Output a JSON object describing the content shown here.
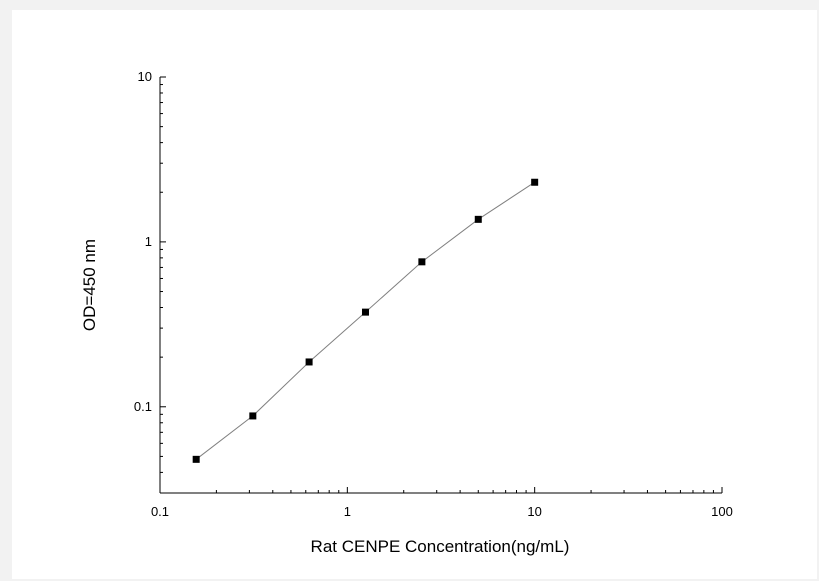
{
  "chart_data": {
    "type": "scatter",
    "title": "",
    "xlabel": "Rat CENPE Concentration(ng/mL)",
    "ylabel": "OD=450 nm",
    "x_scale": "log",
    "y_scale": "log",
    "xlim": [
      0.1,
      100
    ],
    "ylim": [
      0.03,
      10
    ],
    "x_ticks": [
      {
        "value": 0.1,
        "label": "0.1"
      },
      {
        "value": 1,
        "label": "1"
      },
      {
        "value": 10,
        "label": "10"
      },
      {
        "value": 100,
        "label": "100"
      }
    ],
    "y_ticks": [
      {
        "value": 0.1,
        "label": "0.1"
      },
      {
        "value": 1,
        "label": "1"
      },
      {
        "value": 10,
        "label": "10"
      }
    ],
    "grid": false,
    "legend": "none",
    "series": [
      {
        "x": [
          0.156,
          0.313,
          0.625,
          1.25,
          2.5,
          5,
          10
        ],
        "y": [
          0.048,
          0.088,
          0.187,
          0.375,
          0.757,
          1.37,
          2.3
        ],
        "marker": "square",
        "color": "#000000",
        "line_color": "#808080",
        "connected": true
      }
    ]
  }
}
